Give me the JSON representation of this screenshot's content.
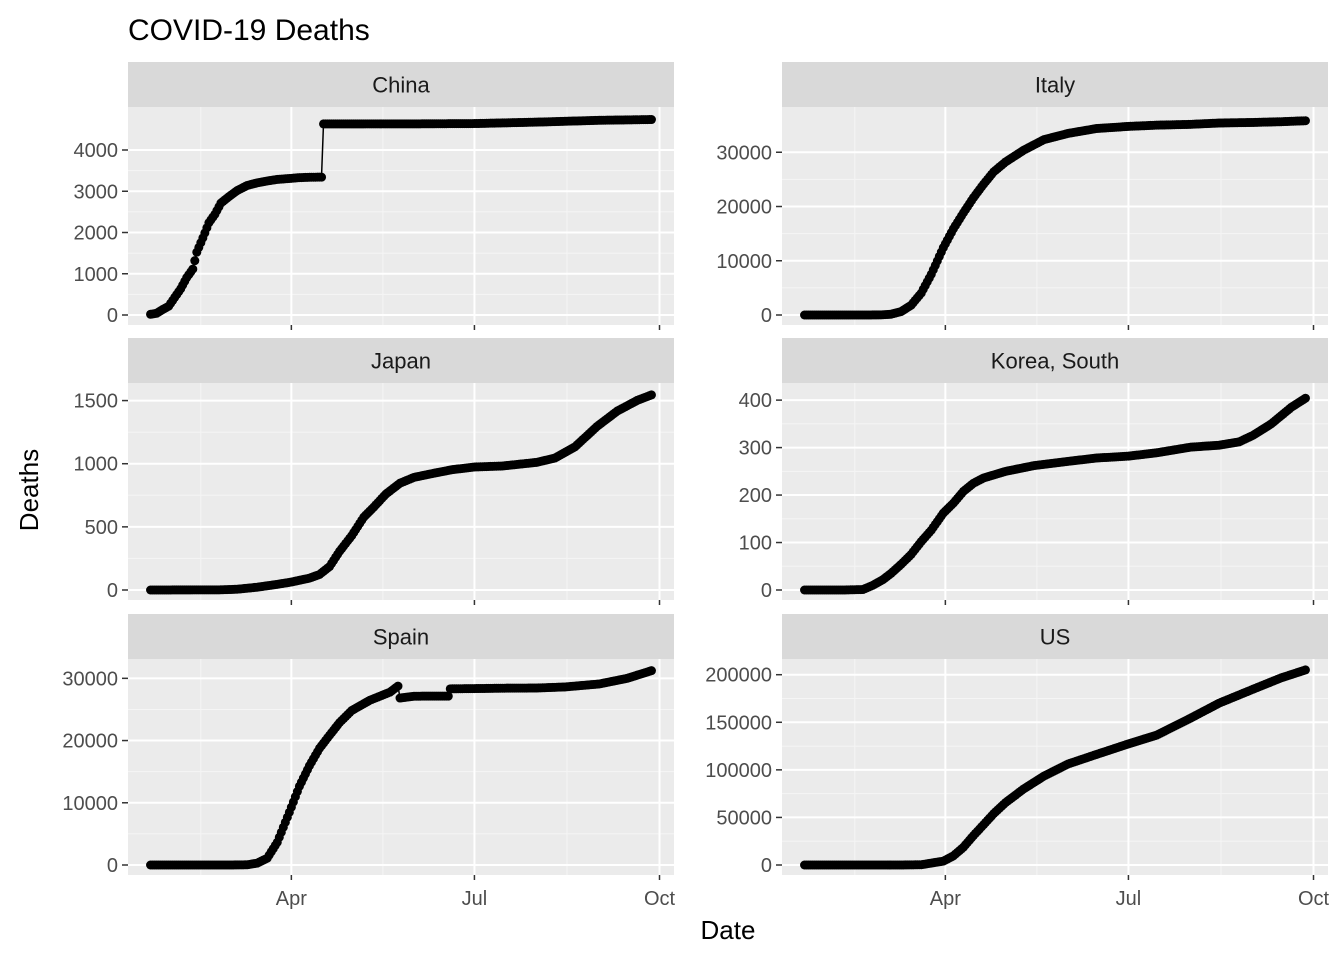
{
  "title": "COVID-19 Deaths",
  "x_label": "Date",
  "y_label": "Deaths",
  "colors": {
    "panel_background": "#ebebeb",
    "strip_background": "#d9d9d9",
    "grid_major": "#ffffff",
    "grid_minor": "#f5f5f5",
    "series": "#000000",
    "tick_text": "#4d4d4d",
    "strip_text": "#1a1a1a"
  },
  "chart_data": {
    "type": "scatter",
    "facet_layout": "3 rows x 2 columns",
    "grid": true,
    "legend": "none",
    "x_type": "date",
    "x_range": [
      "2020-01-22",
      "2020-09-27"
    ],
    "x_ticks": [
      {
        "date": "2020-04-01",
        "label": "Apr"
      },
      {
        "date": "2020-07-01",
        "label": "Jul"
      },
      {
        "date": "2020-10-01",
        "label": "Oct"
      }
    ],
    "facets": [
      {
        "name": "China",
        "ylim": [
          0,
          4800
        ],
        "y_ticks": [
          0,
          1000,
          2000,
          3000,
          4000
        ],
        "points": [
          [
            "2020-01-22",
            17
          ],
          [
            "2020-01-25",
            42
          ],
          [
            "2020-01-28",
            132
          ],
          [
            "2020-01-31",
            213
          ],
          [
            "2020-02-03",
            425
          ],
          [
            "2020-02-06",
            636
          ],
          [
            "2020-02-09",
            908
          ],
          [
            "2020-02-12",
            1113
          ],
          [
            "2020-02-14",
            1523
          ],
          [
            "2020-02-17",
            1868
          ],
          [
            "2020-02-20",
            2236
          ],
          [
            "2020-02-23",
            2442
          ],
          [
            "2020-02-26",
            2715
          ],
          [
            "2020-03-01",
            2870
          ],
          [
            "2020-03-05",
            3015
          ],
          [
            "2020-03-10",
            3140
          ],
          [
            "2020-03-15",
            3203
          ],
          [
            "2020-03-20",
            3250
          ],
          [
            "2020-03-25",
            3287
          ],
          [
            "2020-03-31",
            3309
          ],
          [
            "2020-04-05",
            3330
          ],
          [
            "2020-04-10",
            3339
          ],
          [
            "2020-04-16",
            3342
          ],
          [
            "2020-04-17",
            4632
          ],
          [
            "2020-05-01",
            4633
          ],
          [
            "2020-06-01",
            4634
          ],
          [
            "2020-07-01",
            4641
          ],
          [
            "2020-08-01",
            4676
          ],
          [
            "2020-09-01",
            4720
          ],
          [
            "2020-09-27",
            4739
          ]
        ]
      },
      {
        "name": "Italy",
        "ylim": [
          0,
          36500
        ],
        "y_ticks": [
          0,
          10000,
          20000,
          30000
        ],
        "points": [
          [
            "2020-01-22",
            0
          ],
          [
            "2020-02-01",
            0
          ],
          [
            "2020-02-15",
            0
          ],
          [
            "2020-02-22",
            1
          ],
          [
            "2020-02-29",
            29
          ],
          [
            "2020-03-05",
            148
          ],
          [
            "2020-03-10",
            631
          ],
          [
            "2020-03-15",
            1809
          ],
          [
            "2020-03-20",
            4032
          ],
          [
            "2020-03-25",
            7503
          ],
          [
            "2020-03-31",
            12428
          ],
          [
            "2020-04-05",
            15887
          ],
          [
            "2020-04-10",
            18849
          ],
          [
            "2020-04-15",
            21645
          ],
          [
            "2020-04-20",
            24114
          ],
          [
            "2020-04-25",
            26384
          ],
          [
            "2020-05-01",
            28236
          ],
          [
            "2020-05-10",
            30395
          ],
          [
            "2020-05-20",
            32330
          ],
          [
            "2020-06-01",
            33475
          ],
          [
            "2020-06-15",
            34371
          ],
          [
            "2020-07-01",
            34767
          ],
          [
            "2020-07-15",
            34997
          ],
          [
            "2020-08-01",
            35146
          ],
          [
            "2020-08-15",
            35392
          ],
          [
            "2020-09-01",
            35497
          ],
          [
            "2020-09-15",
            35633
          ],
          [
            "2020-09-27",
            35812
          ]
        ]
      },
      {
        "name": "Japan",
        "ylim": [
          0,
          1560
        ],
        "y_ticks": [
          0,
          500,
          1000,
          1500
        ],
        "points": [
          [
            "2020-01-22",
            0
          ],
          [
            "2020-02-13",
            1
          ],
          [
            "2020-02-25",
            1
          ],
          [
            "2020-03-05",
            6
          ],
          [
            "2020-03-15",
            22
          ],
          [
            "2020-03-25",
            45
          ],
          [
            "2020-04-01",
            63
          ],
          [
            "2020-04-10",
            94
          ],
          [
            "2020-04-15",
            123
          ],
          [
            "2020-04-20",
            186
          ],
          [
            "2020-04-25",
            307
          ],
          [
            "2020-05-01",
            430
          ],
          [
            "2020-05-07",
            577
          ],
          [
            "2020-05-12",
            657
          ],
          [
            "2020-05-18",
            760
          ],
          [
            "2020-05-25",
            846
          ],
          [
            "2020-06-01",
            892
          ],
          [
            "2020-06-10",
            922
          ],
          [
            "2020-06-20",
            953
          ],
          [
            "2020-07-01",
            974
          ],
          [
            "2020-07-15",
            982
          ],
          [
            "2020-08-01",
            1011
          ],
          [
            "2020-08-10",
            1045
          ],
          [
            "2020-08-20",
            1134
          ],
          [
            "2020-08-31",
            1296
          ],
          [
            "2020-09-10",
            1417
          ],
          [
            "2020-09-20",
            1502
          ],
          [
            "2020-09-27",
            1545
          ]
        ]
      },
      {
        "name": "Korea, South",
        "ylim": [
          0,
          415
        ],
        "y_ticks": [
          0,
          100,
          200,
          300,
          400
        ],
        "points": [
          [
            "2020-01-22",
            0
          ],
          [
            "2020-02-10",
            0
          ],
          [
            "2020-02-20",
            1
          ],
          [
            "2020-02-25",
            10
          ],
          [
            "2020-03-01",
            22
          ],
          [
            "2020-03-05",
            35
          ],
          [
            "2020-03-10",
            54
          ],
          [
            "2020-03-15",
            75
          ],
          [
            "2020-03-20",
            102
          ],
          [
            "2020-03-25",
            126
          ],
          [
            "2020-03-31",
            162
          ],
          [
            "2020-04-05",
            183
          ],
          [
            "2020-04-10",
            208
          ],
          [
            "2020-04-15",
            225
          ],
          [
            "2020-04-20",
            236
          ],
          [
            "2020-05-01",
            250
          ],
          [
            "2020-05-15",
            262
          ],
          [
            "2020-06-01",
            271
          ],
          [
            "2020-06-15",
            278
          ],
          [
            "2020-07-01",
            282
          ],
          [
            "2020-07-15",
            289
          ],
          [
            "2020-08-01",
            301
          ],
          [
            "2020-08-15",
            305
          ],
          [
            "2020-08-25",
            312
          ],
          [
            "2020-09-01",
            326
          ],
          [
            "2020-09-10",
            350
          ],
          [
            "2020-09-20",
            385
          ],
          [
            "2020-09-27",
            404
          ]
        ]
      },
      {
        "name": "Spain",
        "ylim": [
          0,
          31500
        ],
        "y_ticks": [
          0,
          10000,
          20000,
          30000
        ],
        "points": [
          [
            "2020-01-22",
            0
          ],
          [
            "2020-02-15",
            0
          ],
          [
            "2020-03-01",
            0
          ],
          [
            "2020-03-10",
            35
          ],
          [
            "2020-03-15",
            297
          ],
          [
            "2020-03-20",
            1093
          ],
          [
            "2020-03-25",
            3647
          ],
          [
            "2020-03-31",
            8464
          ],
          [
            "2020-04-05",
            12641
          ],
          [
            "2020-04-10",
            15970
          ],
          [
            "2020-04-15",
            18756
          ],
          [
            "2020-04-20",
            20852
          ],
          [
            "2020-04-25",
            22902
          ],
          [
            "2020-05-01",
            24824
          ],
          [
            "2020-05-10",
            26478
          ],
          [
            "2020-05-20",
            27778
          ],
          [
            "2020-05-24",
            28752
          ],
          [
            "2020-05-25",
            26834
          ],
          [
            "2020-06-01",
            27127
          ],
          [
            "2020-06-10",
            27136
          ],
          [
            "2020-06-18",
            27136
          ],
          [
            "2020-06-19",
            28315
          ],
          [
            "2020-07-01",
            28355
          ],
          [
            "2020-07-15",
            28413
          ],
          [
            "2020-08-01",
            28445
          ],
          [
            "2020-08-15",
            28617
          ],
          [
            "2020-09-01",
            29094
          ],
          [
            "2020-09-15",
            30004
          ],
          [
            "2020-09-27",
            31232
          ]
        ]
      },
      {
        "name": "US",
        "ylim": [
          0,
          206000
        ],
        "y_ticks": [
          0,
          50000,
          100000,
          150000,
          200000
        ],
        "points": [
          [
            "2020-01-22",
            0
          ],
          [
            "2020-02-15",
            0
          ],
          [
            "2020-03-01",
            1
          ],
          [
            "2020-03-10",
            28
          ],
          [
            "2020-03-20",
            283
          ],
          [
            "2020-03-31",
            4079
          ],
          [
            "2020-04-05",
            9618
          ],
          [
            "2020-04-10",
            18758
          ],
          [
            "2020-04-15",
            30985
          ],
          [
            "2020-04-20",
            42364
          ],
          [
            "2020-04-25",
            53934
          ],
          [
            "2020-05-01",
            65753
          ],
          [
            "2020-05-10",
            80037
          ],
          [
            "2020-05-20",
            93439
          ],
          [
            "2020-06-01",
            106180
          ],
          [
            "2020-06-15",
            116127
          ],
          [
            "2020-07-01",
            127299
          ],
          [
            "2020-07-15",
            136466
          ],
          [
            "2020-08-01",
            154447
          ],
          [
            "2020-08-15",
            170052
          ],
          [
            "2020-09-01",
            184796
          ],
          [
            "2020-09-15",
            196763
          ],
          [
            "2020-09-27",
            205031
          ]
        ]
      }
    ]
  }
}
